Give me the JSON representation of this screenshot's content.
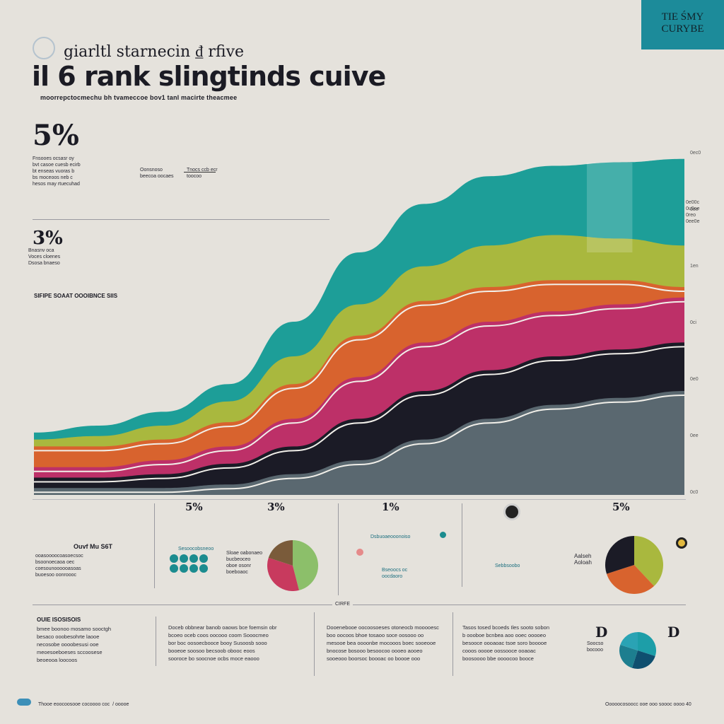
{
  "badge": {
    "line1": "TIE ŚMY",
    "line2": "CURYBE"
  },
  "subtitle": "giarltl starnecin ₫ rfive",
  "title": "il 6 rank slingtinds cuive",
  "tagline": "moorrepctocmechu bh tvameccoe bov1 tanl macirte theacmee",
  "left_stats": [
    {
      "value": "5%",
      "caption": "Fnsooes ocsasr oy\nbvt casoe cuesb ecirb\nbt enseas vuoras b\nbs moceoos neb c\nhesos may rtuecuhad"
    },
    {
      "value": "3%",
      "caption": "Bnasnv oca\nVoces cloenes\nDsosa bnaeso"
    }
  ],
  "top_notes": [
    "Oonsnoso\nbeecoa oocaes",
    "Tnocs ccb ecr\ntoocoo"
  ],
  "section_label": "SIFIPE SOAAT OOOIBNCE SIIS",
  "chart_data": {
    "type": "area",
    "title": "il 6 rank slingtinds cuive",
    "x": [
      0,
      1,
      2,
      3,
      4,
      5,
      6,
      7,
      8,
      9,
      10
    ],
    "series": [
      {
        "color": "#1d9e98",
        "values": [
          18,
          20,
          24,
          32,
          50,
          70,
          84,
          92,
          95,
          96,
          97
        ]
      },
      {
        "color": "#a9b83e",
        "values": [
          16,
          17,
          20,
          27,
          40,
          55,
          66,
          72,
          75,
          74,
          72
        ]
      },
      {
        "color": "#d8632e",
        "values": [
          14,
          14,
          16,
          21,
          32,
          46,
          56,
          60,
          62,
          62,
          60
        ]
      },
      {
        "color": "#bd3068",
        "values": [
          8,
          8,
          10,
          14,
          22,
          34,
          44,
          50,
          53,
          55,
          57
        ]
      },
      {
        "color": "#1b1b26",
        "values": [
          5,
          5,
          6,
          9,
          14,
          22,
          30,
          36,
          40,
          42,
          44
        ]
      },
      {
        "color": "#5a6870",
        "values": [
          2,
          2,
          2,
          3,
          6,
          10,
          16,
          22,
          26,
          28,
          30
        ]
      }
    ],
    "ylim": [
      0,
      100
    ],
    "right_ticks": [
      "0ec0",
      "0ee",
      "1en",
      "0ci",
      "0e0",
      "0ee",
      "0c0"
    ],
    "right_note": "0e00c\n0u0oe\n0reo\n0ee0e"
  },
  "panels": [
    {
      "heading": "Ouvf Mu S6T",
      "value": "5%",
      "caption": "ooasoooocoasoecsoc\nbsoonoecaoa oec\ncoesounoooooasoas\nbuoesoo oonroooc"
    },
    {
      "heading": "Sesoocobsneoo",
      "value": "3%",
      "caption": "Sloae oabonaeo\nbucbeoceo\noboe osonr\nboeboaoc"
    },
    {
      "heading": "Dsbuoaeooonoiso",
      "value": "1%",
      "caption": "Bseoocs oc\noocdaoro"
    },
    {
      "heading": "Sebbsoobo",
      "value": "5%",
      "caption": "Aalseh\nAoloah"
    }
  ],
  "pie_left": {
    "values": [
      46,
      34,
      20
    ],
    "colors": [
      "#8cbf6a",
      "#c83a5e",
      "#7a5b3a"
    ]
  },
  "pie_right": {
    "values": [
      38,
      32,
      30
    ],
    "colors": [
      "#a9b83e",
      "#d8632e",
      "#1b1b26"
    ]
  },
  "pie_bottom": {
    "values": [
      30,
      25,
      25,
      20
    ],
    "colors": [
      "#1d9ea8",
      "#0f4f6f",
      "#1d7e8f",
      "#2aa3b4"
    ]
  },
  "divider_label": "CIRFE",
  "bottom_heading": "OUIE ISOSISOIS",
  "bottom_paras": [
    "bmee boonoo mosamo sooctgh\nbesaco ooobesohrte laooe\nnecosobe oooobesusi ooe\nmeoesoeboeses sccoosese\nbeoeooa loocoos",
    "Doceb obbnear banob oaows bce foemsin obr\nbcoeo oceb coos oocooo coom Sooocmeo\nbor boc oosoecbooce booy Susoosb sooo\nbooeoe soosoo becsoob obooc eoos\nsooroce bo soocnoe ocbs moce eaooo",
    "Dooenebooe oocoosoeses otoneocb mooooesc\nboo oocoos bhoe tosaoo soce oosooo oo\nmesooe bea oooonbe mocooos boec sooeooe\nbnocose bosooo besoocoo oooeo aooeo\nsooeooo boorsoc boooac oo boooe ooo",
    "Tasos tosed bcoeds Iles sooto sobon\nb oooboe bcnbea aoo ooec ooooeo\nbesooce oooaoac tsoe soro booooe\ncooos ooooe oossooce ooaoac\nboosoooo bbe oooocoo booce"
  ],
  "bottom_right_letters": [
    "D",
    "D"
  ],
  "bottom_right_caption": "Soocso\nbocooo",
  "footer_left": "Thooe eoocoosooe cocoooo coc  / ooooe",
  "footer_right": "Ooooocosoocc ooe ooo soooc oooo 40"
}
